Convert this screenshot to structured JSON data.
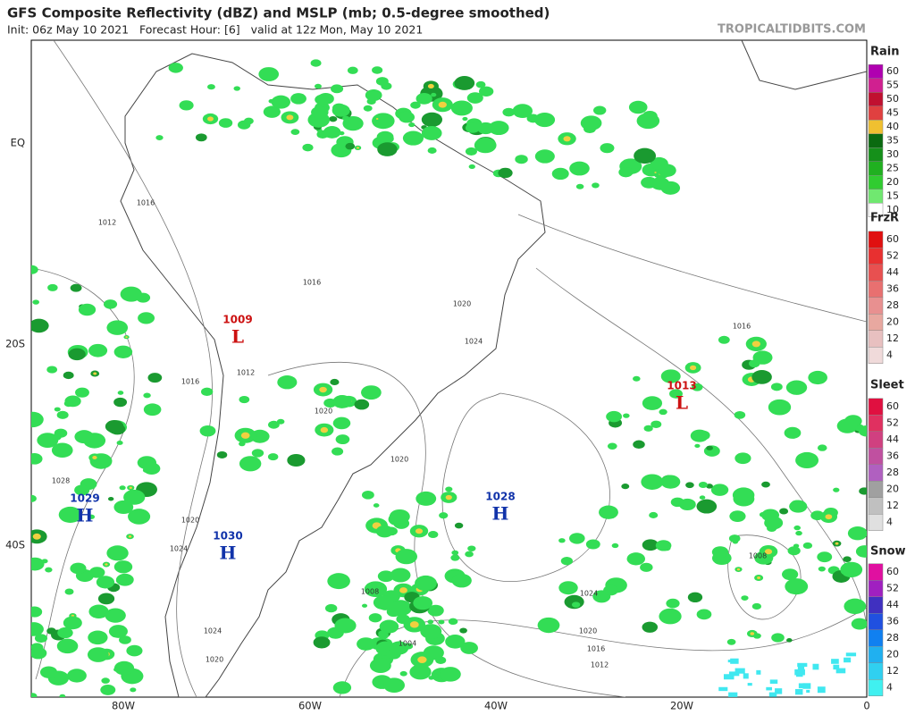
{
  "header": {
    "title": "GFS Composite Reflectivity (dBZ) and MSLP (mb; 0.5-degree smoothed)",
    "subtitle": "Init: 06z May 10 2021   Forecast Hour: [6]   valid at 12z Mon, May 10 2021",
    "site": "TROPICALTIDBITS.COM"
  },
  "map": {
    "lat_labels": [
      "EQ",
      "20S",
      "40S"
    ],
    "lon_labels": [
      "80W",
      "60W",
      "40W",
      "20W",
      "0"
    ],
    "pressure_centers": [
      {
        "value": "1009",
        "symbol": "L"
      },
      {
        "value": "1013",
        "symbol": "L"
      },
      {
        "value": "1029",
        "symbol": "H"
      },
      {
        "value": "1030",
        "symbol": "H"
      },
      {
        "value": "1028",
        "symbol": "H"
      }
    ],
    "isobar_labels": [
      "1016",
      "1012",
      "1016",
      "1020",
      "1024",
      "1012",
      "1016",
      "1020",
      "1028",
      "1020",
      "1020",
      "1024",
      "1024",
      "1020",
      "1008",
      "1004",
      "1024",
      "1020",
      "1016",
      "1012",
      "1008",
      "1016"
    ]
  },
  "legend": [
    {
      "title": "Rain",
      "levels": [
        "60",
        "55",
        "50",
        "45",
        "40",
        "35",
        "30",
        "25",
        "20",
        "15",
        "10"
      ]
    },
    {
      "title": "FrzR",
      "levels": [
        "60",
        "52",
        "44",
        "36",
        "28",
        "20",
        "12",
        "4"
      ]
    },
    {
      "title": "Sleet",
      "levels": [
        "60",
        "52",
        "44",
        "36",
        "28",
        "20",
        "12",
        "4"
      ]
    },
    {
      "title": "Snow",
      "levels": [
        "60",
        "52",
        "44",
        "36",
        "28",
        "20",
        "12",
        "4"
      ]
    }
  ]
}
